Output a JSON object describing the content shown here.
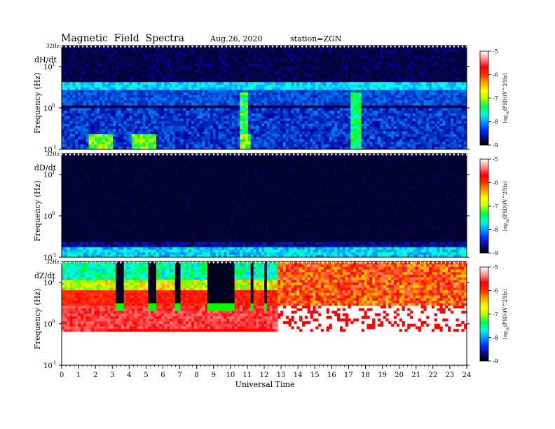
{
  "header": {
    "title": "Magnetic  Field  Spectra",
    "date": "Aug.26, 2020",
    "station": "station=ZGN"
  },
  "chart_data": {
    "type": "heatmap",
    "xlabel": "Universal Time",
    "xlim": [
      0,
      24
    ],
    "x_ticks": [
      "0",
      "1",
      "2",
      "3",
      "4",
      "5",
      "6",
      "7",
      "8",
      "9",
      "10",
      "11",
      "12",
      "13",
      "14",
      "15",
      "16",
      "17",
      "18",
      "19",
      "20",
      "21",
      "22",
      "23",
      "24"
    ],
    "ylabel": "Frequency  (Hz)",
    "y_scale": "log",
    "ylim": [
      0.1,
      32
    ],
    "y_top_label": "32Hz",
    "y_ticks": [
      {
        "value": 10,
        "base": "10",
        "exp": "1"
      },
      {
        "value": 1,
        "base": "10",
        "exp": "0"
      },
      {
        "value": 0.1,
        "base": "10",
        "exp": "-1"
      }
    ],
    "colorbar": {
      "label": "log(PSD)(V^2/Hz)",
      "label_prefix": "log",
      "label_sub": "10",
      "label_rest": "(PSD)(V^2/Hz)",
      "range": [
        -9,
        -5
      ],
      "ticks": [
        "-5",
        "-6",
        "-7",
        "-8",
        "-9"
      ],
      "colors": [
        "#000000",
        "#0a0a8c",
        "#0030ff",
        "#00a0ff",
        "#00ffd0",
        "#00ff40",
        "#c0ff00",
        "#ffff00",
        "#ffa000",
        "#ff3000",
        "#ff0000",
        "#ff9090",
        "#ffffff"
      ]
    },
    "panels": [
      {
        "name": "dH/dt",
        "mode": "dh"
      },
      {
        "name": "dD/dt",
        "mode": "dd"
      },
      {
        "name": "dZ/dt",
        "mode": "dz"
      }
    ]
  }
}
